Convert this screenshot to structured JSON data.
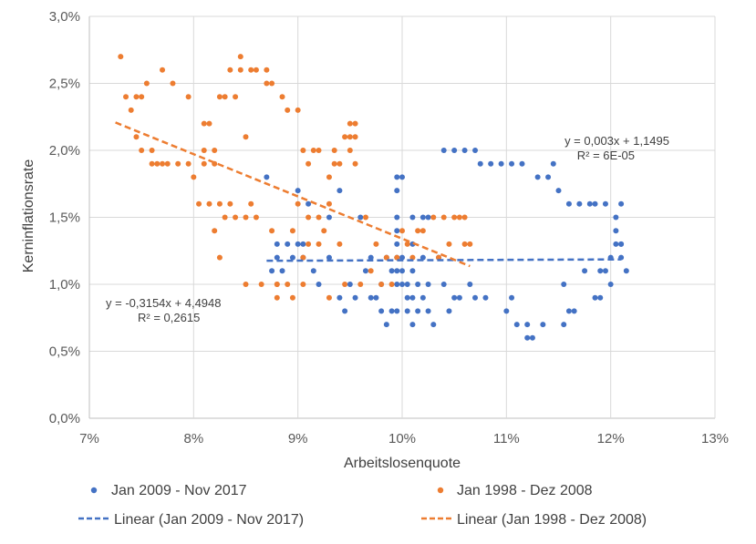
{
  "chart_data": {
    "type": "scatter",
    "xlabel": "Arbeitslosenquote",
    "ylabel": "Kerninflationsrate",
    "xlim": [
      7,
      13
    ],
    "ylim": [
      0,
      3
    ],
    "x_ticks": [
      "7%",
      "8%",
      "9%",
      "10%",
      "11%",
      "12%",
      "13%"
    ],
    "y_ticks": [
      "0,0%",
      "0,5%",
      "1,0%",
      "1,5%",
      "2,0%",
      "2,5%",
      "3,0%"
    ],
    "colors": {
      "blue": "#4472C4",
      "orange": "#ED7D31",
      "grid": "#d9d9d9"
    },
    "series": [
      {
        "name": "Jan 2009 - Nov 2017",
        "color": "#4472C4",
        "points": [
          [
            8.7,
            1.8
          ],
          [
            8.75,
            1.1
          ],
          [
            8.8,
            1.2
          ],
          [
            8.8,
            1.3
          ],
          [
            8.85,
            1.1
          ],
          [
            8.9,
            1.3
          ],
          [
            8.95,
            1.2
          ],
          [
            9.0,
            1.7
          ],
          [
            9.0,
            1.3
          ],
          [
            9.05,
            1.2
          ],
          [
            9.05,
            1.3
          ],
          [
            9.1,
            1.6
          ],
          [
            9.15,
            1.1
          ],
          [
            9.2,
            1.0
          ],
          [
            9.3,
            1.2
          ],
          [
            9.3,
            1.5
          ],
          [
            9.4,
            1.7
          ],
          [
            9.4,
            0.9
          ],
          [
            9.45,
            0.8
          ],
          [
            9.5,
            1.0
          ],
          [
            9.55,
            0.9
          ],
          [
            9.6,
            1.5
          ],
          [
            9.65,
            1.1
          ],
          [
            9.7,
            0.9
          ],
          [
            9.7,
            1.2
          ],
          [
            9.75,
            0.9
          ],
          [
            9.8,
            1.0
          ],
          [
            9.8,
            0.8
          ],
          [
            9.85,
            0.7
          ],
          [
            9.85,
            1.2
          ],
          [
            9.9,
            0.8
          ],
          [
            9.9,
            1.1
          ],
          [
            9.95,
            1.8
          ],
          [
            9.95,
            1.7
          ],
          [
            9.95,
            1.5
          ],
          [
            9.95,
            1.4
          ],
          [
            9.95,
            1.3
          ],
          [
            9.95,
            1.2
          ],
          [
            9.95,
            1.1
          ],
          [
            9.95,
            1.0
          ],
          [
            9.95,
            0.8
          ],
          [
            10.0,
            1.8
          ],
          [
            10.0,
            1.2
          ],
          [
            10.0,
            1.1
          ],
          [
            10.0,
            1.0
          ],
          [
            10.05,
            1.0
          ],
          [
            10.05,
            0.9
          ],
          [
            10.05,
            0.8
          ],
          [
            10.1,
            1.5
          ],
          [
            10.1,
            1.3
          ],
          [
            10.1,
            1.1
          ],
          [
            10.1,
            0.9
          ],
          [
            10.1,
            0.7
          ],
          [
            10.15,
            1.0
          ],
          [
            10.15,
            0.8
          ],
          [
            10.2,
            1.5
          ],
          [
            10.2,
            1.2
          ],
          [
            10.2,
            0.9
          ],
          [
            10.25,
            1.5
          ],
          [
            10.25,
            1.0
          ],
          [
            10.25,
            0.8
          ],
          [
            10.3,
            0.7
          ],
          [
            10.35,
            1.2
          ],
          [
            10.4,
            1.0
          ],
          [
            10.4,
            2.0
          ],
          [
            10.45,
            0.8
          ],
          [
            10.5,
            2.0
          ],
          [
            10.5,
            0.9
          ],
          [
            10.55,
            0.9
          ],
          [
            10.6,
            2.0
          ],
          [
            10.65,
            1.0
          ],
          [
            10.7,
            2.0
          ],
          [
            10.7,
            0.9
          ],
          [
            10.75,
            1.9
          ],
          [
            10.8,
            0.9
          ],
          [
            10.85,
            1.9
          ],
          [
            10.95,
            1.9
          ],
          [
            11.0,
            0.8
          ],
          [
            11.05,
            0.9
          ],
          [
            11.05,
            1.9
          ],
          [
            11.1,
            0.7
          ],
          [
            11.15,
            1.9
          ],
          [
            11.2,
            0.6
          ],
          [
            11.2,
            0.7
          ],
          [
            11.25,
            0.6
          ],
          [
            11.3,
            1.8
          ],
          [
            11.35,
            0.7
          ],
          [
            11.4,
            1.8
          ],
          [
            11.45,
            1.9
          ],
          [
            11.5,
            1.7
          ],
          [
            11.55,
            0.7
          ],
          [
            11.55,
            1.0
          ],
          [
            11.6,
            0.8
          ],
          [
            11.6,
            1.6
          ],
          [
            11.65,
            0.8
          ],
          [
            11.7,
            1.6
          ],
          [
            11.75,
            1.1
          ],
          [
            11.8,
            1.6
          ],
          [
            11.85,
            0.9
          ],
          [
            11.85,
            1.6
          ],
          [
            11.9,
            0.9
          ],
          [
            11.9,
            1.1
          ],
          [
            11.95,
            1.6
          ],
          [
            11.95,
            1.1
          ],
          [
            12.0,
            1.0
          ],
          [
            12.0,
            1.2
          ],
          [
            12.05,
            1.5
          ],
          [
            12.05,
            1.3
          ],
          [
            12.05,
            1.4
          ],
          [
            12.1,
            1.6
          ],
          [
            12.1,
            1.3
          ],
          [
            12.1,
            1.2
          ],
          [
            12.15,
            1.1
          ],
          [
            12.1,
            1.3
          ]
        ]
      },
      {
        "name": "Jan 1998 - Dez 2008",
        "color": "#ED7D31",
        "points": [
          [
            7.3,
            2.7
          ],
          [
            7.35,
            2.4
          ],
          [
            7.4,
            2.3
          ],
          [
            7.45,
            2.4
          ],
          [
            7.45,
            2.1
          ],
          [
            7.5,
            2.4
          ],
          [
            7.5,
            2.0
          ],
          [
            7.55,
            2.5
          ],
          [
            7.6,
            2.0
          ],
          [
            7.6,
            1.9
          ],
          [
            7.65,
            1.9
          ],
          [
            7.7,
            2.6
          ],
          [
            7.7,
            1.9
          ],
          [
            7.75,
            1.9
          ],
          [
            7.8,
            2.5
          ],
          [
            7.85,
            1.9
          ],
          [
            7.95,
            2.4
          ],
          [
            7.95,
            1.9
          ],
          [
            8.0,
            1.8
          ],
          [
            8.05,
            1.6
          ],
          [
            8.1,
            2.2
          ],
          [
            8.1,
            2.0
          ],
          [
            8.1,
            1.9
          ],
          [
            8.15,
            1.6
          ],
          [
            8.15,
            2.2
          ],
          [
            8.2,
            1.4
          ],
          [
            8.2,
            1.9
          ],
          [
            8.2,
            2.0
          ],
          [
            8.25,
            1.6
          ],
          [
            8.25,
            1.2
          ],
          [
            8.25,
            2.4
          ],
          [
            8.3,
            2.4
          ],
          [
            8.3,
            1.5
          ],
          [
            8.35,
            1.6
          ],
          [
            8.35,
            2.6
          ],
          [
            8.4,
            2.4
          ],
          [
            8.4,
            1.5
          ],
          [
            8.45,
            2.7
          ],
          [
            8.45,
            2.6
          ],
          [
            8.5,
            1.5
          ],
          [
            8.5,
            1.0
          ],
          [
            8.5,
            2.1
          ],
          [
            8.55,
            1.6
          ],
          [
            8.55,
            2.6
          ],
          [
            8.6,
            1.5
          ],
          [
            8.6,
            2.6
          ],
          [
            8.65,
            1.0
          ],
          [
            8.7,
            2.5
          ],
          [
            8.7,
            2.6
          ],
          [
            8.75,
            1.4
          ],
          [
            8.75,
            2.5
          ],
          [
            8.8,
            1.0
          ],
          [
            8.8,
            1.0
          ],
          [
            8.8,
            0.9
          ],
          [
            8.85,
            2.4
          ],
          [
            8.9,
            2.3
          ],
          [
            8.9,
            1.0
          ],
          [
            8.95,
            1.4
          ],
          [
            8.95,
            0.9
          ],
          [
            9.0,
            2.3
          ],
          [
            9.0,
            1.6
          ],
          [
            9.05,
            2.0
          ],
          [
            9.05,
            1.2
          ],
          [
            9.05,
            1.0
          ],
          [
            9.1,
            1.3
          ],
          [
            9.1,
            1.9
          ],
          [
            9.1,
            1.5
          ],
          [
            9.15,
            2.0
          ],
          [
            9.2,
            1.5
          ],
          [
            9.2,
            2.0
          ],
          [
            9.2,
            1.3
          ],
          [
            9.25,
            1.4
          ],
          [
            9.3,
            0.9
          ],
          [
            9.3,
            1.8
          ],
          [
            9.3,
            1.6
          ],
          [
            9.35,
            2.0
          ],
          [
            9.35,
            1.9
          ],
          [
            9.4,
            1.9
          ],
          [
            9.4,
            1.3
          ],
          [
            9.45,
            1.0
          ],
          [
            9.45,
            2.1
          ],
          [
            9.5,
            2.2
          ],
          [
            9.5,
            2.1
          ],
          [
            9.5,
            2.0
          ],
          [
            9.55,
            2.2
          ],
          [
            9.55,
            2.1
          ],
          [
            9.55,
            1.9
          ],
          [
            9.6,
            1.0
          ],
          [
            9.65,
            1.5
          ],
          [
            9.7,
            1.1
          ],
          [
            9.75,
            1.3
          ],
          [
            9.8,
            1.0
          ],
          [
            9.85,
            1.2
          ],
          [
            9.9,
            1.0
          ],
          [
            9.95,
            1.2
          ],
          [
            10.0,
            1.4
          ],
          [
            10.05,
            1.3
          ],
          [
            10.1,
            1.2
          ],
          [
            10.15,
            1.4
          ],
          [
            10.2,
            1.4
          ],
          [
            10.3,
            1.5
          ],
          [
            10.35,
            1.2
          ],
          [
            10.4,
            1.5
          ],
          [
            10.45,
            1.3
          ],
          [
            10.5,
            1.5
          ],
          [
            10.55,
            1.5
          ],
          [
            10.6,
            1.3
          ],
          [
            10.65,
            1.3
          ],
          [
            10.6,
            1.5
          ]
        ]
      }
    ],
    "trendlines": [
      {
        "series": "Jan 2009 - Nov 2017",
        "slope": 0.003,
        "intercept": 1.1495,
        "x_range": [
          8.7,
          12.1
        ],
        "color": "#4472C4"
      },
      {
        "series": "Jan 1998 - Dez 2008",
        "slope": -0.3154,
        "intercept": 4.4948,
        "x_range": [
          7.25,
          10.65
        ],
        "color": "#ED7D31"
      }
    ],
    "annotations": {
      "blue_equation": "y = 0,003x + 1,1495",
      "blue_r2": "R² = 6E-05",
      "orange_equation": "y = -0,3154x + 4,4948",
      "orange_r2": "R² = 0,2615"
    },
    "legend": {
      "position": "bottom",
      "items": [
        {
          "label": "Jan 2009 - Nov 2017",
          "kind": "marker",
          "color": "#4472C4"
        },
        {
          "label": "Jan 1998 - Dez 2008",
          "kind": "marker",
          "color": "#ED7D31"
        },
        {
          "label": "Linear (Jan 2009 - Nov 2017)",
          "kind": "dash",
          "color": "#4472C4"
        },
        {
          "label": "Linear (Jan 1998 - Dez 2008)",
          "kind": "dash",
          "color": "#ED7D31"
        }
      ]
    }
  }
}
